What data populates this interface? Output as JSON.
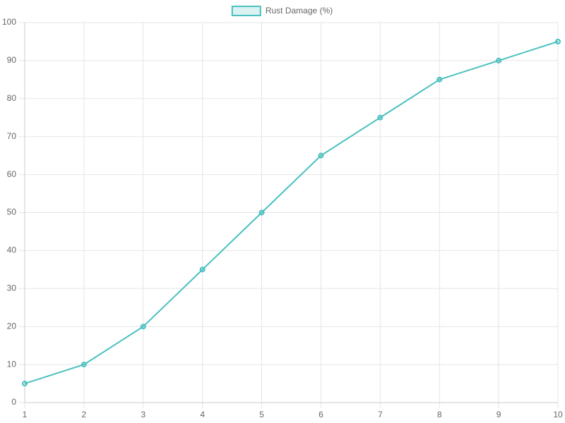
{
  "chart_data": {
    "type": "line",
    "x": [
      1,
      2,
      3,
      4,
      5,
      6,
      7,
      8,
      9,
      10
    ],
    "xlim": [
      1,
      10
    ],
    "xticks": [
      1,
      2,
      3,
      4,
      5,
      6,
      7,
      8,
      9,
      10
    ],
    "series": [
      {
        "name": "Rust Damage (%)",
        "color": "#4bc0c0",
        "values": [
          5,
          10,
          20,
          35,
          50,
          65,
          75,
          85,
          90,
          95
        ]
      }
    ],
    "ylim": [
      0,
      100
    ],
    "yticks": [
      0,
      10,
      20,
      30,
      40,
      50,
      60,
      70,
      80,
      90,
      100
    ],
    "grid": true,
    "legend": "top"
  }
}
